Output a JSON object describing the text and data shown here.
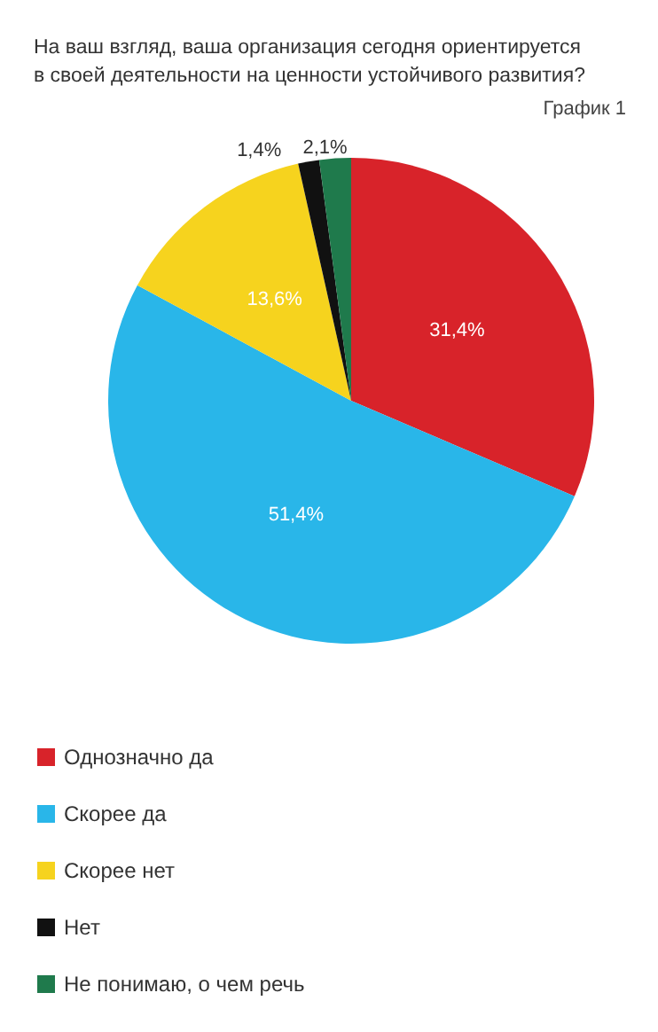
{
  "chart_data": {
    "type": "pie",
    "title": "На ваш взгляд, ваша организация сегодня ориентируется\nв своей деятельности на ценности устойчивого развития?",
    "annotations": [
      "График 1"
    ],
    "categories": [
      "Однозначно да",
      "Скорее да",
      "Скорее нет",
      "Нет",
      "Не понимаю, о чем речь"
    ],
    "values": [
      31.4,
      51.4,
      13.6,
      1.4,
      2.1
    ],
    "colors": [
      "#d8232a",
      "#29b6e9",
      "#f6d31e",
      "#111111",
      "#1f7a4c"
    ],
    "value_labels": [
      "31,4%",
      "51,4%",
      "13,6%",
      "1,4%",
      "2,1%"
    ],
    "legend": "bottom left"
  }
}
